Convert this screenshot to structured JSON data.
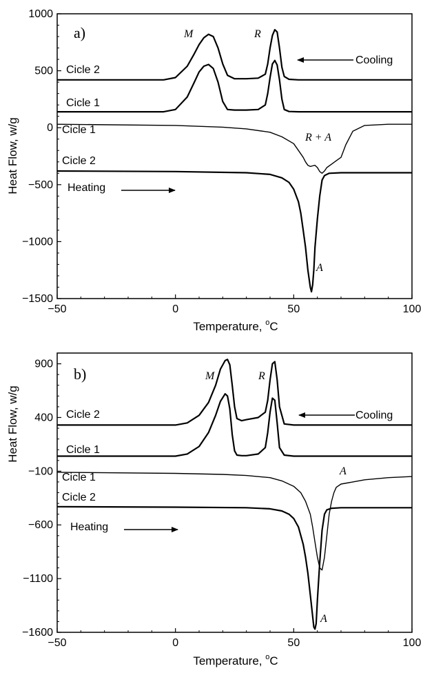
{
  "chart_data": [
    {
      "type": "line",
      "panel_label": "a)",
      "xlabel": "Temperature, ",
      "xlabel_unit": "C",
      "xlabel_degree": "o",
      "ylabel": "Heat Flow, w/g",
      "xlim": [
        -50,
        100
      ],
      "ylim": [
        -1500,
        1000
      ],
      "xticks": [
        -50,
        0,
        50,
        100
      ],
      "yticks": [
        -1500,
        -1000,
        -500,
        0,
        500,
        1000
      ],
      "ytick_labels": [
        "−1500",
        "−1000",
        "−500",
        "0",
        "500",
        "1000"
      ],
      "annotations": {
        "cooling": "Cooling",
        "heating": "Heating",
        "peak_m": "M",
        "peak_r": "R",
        "peak_ra": "R + A",
        "peak_a": "A"
      },
      "series": [
        {
          "name": "Cicle 2",
          "direction": "cooling",
          "x": [
            -50,
            -5,
            0,
            5,
            8,
            10,
            12,
            14,
            16,
            18,
            20,
            22,
            25,
            30,
            35,
            38,
            39,
            40,
            41,
            42,
            43,
            44,
            45,
            46,
            48,
            52,
            60,
            100
          ],
          "y": [
            420,
            420,
            440,
            540,
            650,
            730,
            790,
            820,
            800,
            700,
            560,
            460,
            430,
            430,
            435,
            470,
            560,
            700,
            810,
            860,
            840,
            700,
            530,
            450,
            425,
            420,
            420,
            420
          ]
        },
        {
          "name": "Cicle 1",
          "direction": "cooling",
          "x": [
            -50,
            -5,
            0,
            5,
            8,
            10,
            12,
            14,
            16,
            18,
            20,
            22,
            25,
            30,
            35,
            38,
            39,
            40,
            41,
            42,
            43,
            44,
            45,
            46,
            48,
            52,
            60,
            100
          ],
          "y": [
            140,
            140,
            160,
            270,
            400,
            490,
            540,
            555,
            520,
            400,
            230,
            160,
            155,
            155,
            160,
            200,
            300,
            440,
            560,
            590,
            550,
            420,
            250,
            160,
            142,
            140,
            140,
            140
          ]
        },
        {
          "name": "Cicle 1",
          "direction": "heating",
          "x": [
            -50,
            0,
            20,
            30,
            40,
            45,
            50,
            52,
            54,
            55,
            56,
            57,
            58,
            59,
            60,
            61,
            62,
            63,
            64,
            66,
            68,
            70,
            72,
            75,
            80,
            90,
            100
          ],
          "y": [
            30,
            20,
            5,
            -10,
            -40,
            -80,
            -140,
            -200,
            -260,
            -300,
            -330,
            -340,
            -335,
            -330,
            -350,
            -385,
            -400,
            -380,
            -350,
            -320,
            -290,
            -260,
            -150,
            -30,
            20,
            30,
            30
          ]
        },
        {
          "name": "Cicle 2",
          "direction": "heating",
          "x": [
            -50,
            0,
            30,
            40,
            45,
            48,
            50,
            52,
            53,
            54,
            55,
            56,
            57,
            57.5,
            58,
            58.5,
            59,
            60,
            61,
            62,
            63,
            65,
            70,
            80,
            100
          ],
          "y": [
            -380,
            -385,
            -395,
            -410,
            -440,
            -480,
            -540,
            -650,
            -750,
            -900,
            -1050,
            -1250,
            -1400,
            -1440,
            -1380,
            -1250,
            -1050,
            -800,
            -600,
            -460,
            -420,
            -400,
            -395,
            -395,
            -395
          ]
        }
      ]
    },
    {
      "type": "line",
      "panel_label": "b)",
      "xlabel": "Temperature, ",
      "xlabel_unit": "C",
      "xlabel_degree": "o",
      "ylabel": "Heat Flow, w/g",
      "xlim": [
        -50,
        100
      ],
      "ylim": [
        -1600,
        1000
      ],
      "xticks": [
        -50,
        0,
        50,
        100
      ],
      "yticks": [
        -1600,
        -1100,
        -600,
        -100,
        400,
        900
      ],
      "ytick_labels": [
        "−1600",
        "−1100",
        "−600",
        "−100",
        "400",
        "900"
      ],
      "annotations": {
        "cooling": "Cooling",
        "heating": "Heating",
        "peak_m": "M",
        "peak_r": "R",
        "peak_a1": "A",
        "peak_a2": "A"
      },
      "series": [
        {
          "name": "Cicle 2",
          "direction": "cooling",
          "x": [
            -50,
            0,
            5,
            10,
            14,
            17,
            19,
            21,
            22,
            23,
            24,
            25,
            26,
            28,
            30,
            35,
            38,
            39,
            40,
            41,
            42,
            43,
            44,
            46,
            50,
            60,
            100
          ],
          "y": [
            330,
            330,
            350,
            420,
            540,
            700,
            850,
            930,
            940,
            890,
            700,
            500,
            390,
            370,
            380,
            400,
            450,
            560,
            750,
            900,
            920,
            750,
            500,
            340,
            330,
            330,
            330
          ]
        },
        {
          "name": "Cicle 1",
          "direction": "cooling",
          "x": [
            -50,
            0,
            5,
            10,
            14,
            17,
            19,
            21,
            22,
            23,
            24,
            25,
            26,
            28,
            30,
            35,
            38,
            39,
            40,
            41,
            42,
            43,
            44,
            46,
            50,
            60,
            100
          ],
          "y": [
            40,
            40,
            60,
            130,
            260,
            420,
            550,
            620,
            600,
            480,
            240,
            90,
            50,
            45,
            45,
            60,
            120,
            260,
            450,
            580,
            560,
            350,
            120,
            50,
            40,
            40,
            40
          ]
        },
        {
          "name": "Cicle 1",
          "direction": "heating",
          "x": [
            -50,
            0,
            20,
            30,
            40,
            45,
            50,
            53,
            55,
            57,
            58,
            59,
            60,
            61,
            62,
            63,
            64,
            65,
            66,
            67,
            68,
            70,
            75,
            80,
            90,
            100
          ],
          "y": [
            -110,
            -120,
            -130,
            -140,
            -160,
            -190,
            -240,
            -300,
            -380,
            -500,
            -620,
            -760,
            -900,
            -1000,
            -1020,
            -900,
            -700,
            -500,
            -380,
            -300,
            -250,
            -220,
            -200,
            -180,
            -160,
            -150
          ]
        },
        {
          "name": "Cicle 2",
          "direction": "heating",
          "x": [
            -50,
            0,
            30,
            40,
            45,
            48,
            50,
            52,
            54,
            55,
            56,
            57,
            58,
            58.5,
            59,
            59.5,
            60,
            61,
            62,
            63,
            64,
            66,
            70,
            80,
            100
          ],
          "y": [
            -430,
            -435,
            -440,
            -450,
            -470,
            -500,
            -540,
            -620,
            -780,
            -900,
            -1050,
            -1250,
            -1450,
            -1550,
            -1570,
            -1520,
            -1300,
            -950,
            -650,
            -500,
            -460,
            -445,
            -440,
            -440,
            -440
          ]
        }
      ]
    }
  ]
}
